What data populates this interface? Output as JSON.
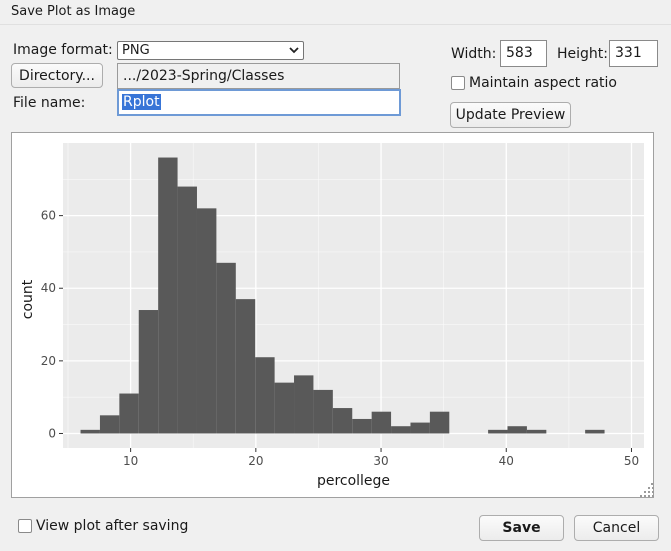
{
  "window": {
    "title": "Save Plot as Image"
  },
  "format": {
    "label": "Image format:",
    "value": "PNG"
  },
  "directory": {
    "button_label": "Directory...",
    "path": ".../2023-Spring/Classes"
  },
  "file": {
    "label": "File name:",
    "value": "Rplot"
  },
  "size": {
    "width_label": "Width:",
    "width_value": "583",
    "height_label": "Height:",
    "height_value": "331",
    "aspect_label": "Maintain aspect ratio",
    "aspect_checked": false
  },
  "update_preview_label": "Update Preview",
  "footer": {
    "view_after_label": "View plot after saving",
    "view_after_checked": false,
    "save_label": "Save",
    "cancel_label": "Cancel"
  },
  "colors": {
    "bar": "#595959",
    "panel": "#ebebeb",
    "selection": "#3875d7"
  },
  "chart_data": {
    "type": "bar",
    "title": "",
    "xlabel": "percollege",
    "ylabel": "count",
    "x_ticks": [
      "10",
      "20",
      "30",
      "40",
      "50"
    ],
    "y_ticks": [
      "0",
      "20",
      "40",
      "60"
    ],
    "xlim": [
      4.6,
      51
    ],
    "ylim": [
      -4,
      80
    ],
    "bin_width": 1.55,
    "bin_starts": [
      6.0,
      7.55,
      9.1,
      10.65,
      12.2,
      13.75,
      15.3,
      16.85,
      18.4,
      19.95,
      21.5,
      23.05,
      24.6,
      26.15,
      27.7,
      29.25,
      30.8,
      32.35,
      33.9,
      35.45,
      37.0,
      38.55,
      40.1,
      41.65,
      43.2,
      44.75,
      46.3,
      47.85
    ],
    "values": [
      1,
      5,
      11,
      34,
      76,
      68,
      62,
      47,
      37,
      21,
      14,
      16,
      12,
      7,
      4,
      6,
      2,
      3,
      6,
      0,
      0,
      1,
      2,
      1,
      0,
      0,
      1,
      0
    ],
    "grid": true,
    "legend": "none"
  }
}
